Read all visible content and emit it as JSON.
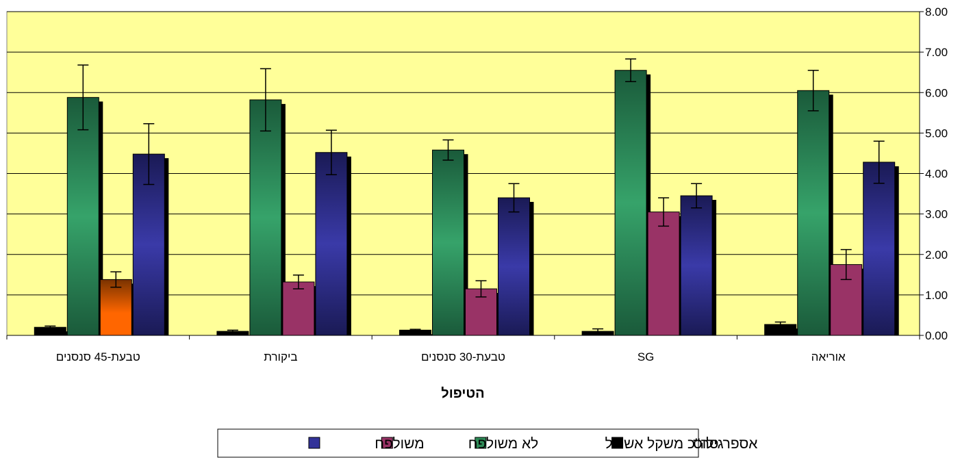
{
  "chart_data": {
    "type": "bar",
    "title": "",
    "xlabel": "הטיפול",
    "ylabel": "",
    "ylim": [
      0,
      8
    ],
    "yticks": [
      "0.00",
      "1.00",
      "2.00",
      "3.00",
      "4.00",
      "5.00",
      "6.00",
      "7.00",
      "8.00"
    ],
    "y_axis_side": "right",
    "category_order": "right-to-left",
    "grid": true,
    "legend_position": "bottom-center",
    "categories": [
      "אוריאה",
      "SG",
      "טבעת-30 סנסנים",
      "ביקורת",
      "טבעת-45 סנסנים"
    ],
    "series": [
      {
        "name": "אספרגילוס",
        "color": "#000000",
        "values": [
          0.27,
          0.1,
          0.13,
          0.1,
          0.2
        ],
        "errors": [
          0.06,
          0.06,
          0.02,
          0.03,
          0.03
        ]
      },
      {
        "name": "סה\"כ משקל אשכול",
        "color": "#2e8b57",
        "values": [
          6.05,
          6.55,
          4.58,
          5.82,
          5.88
        ],
        "errors": [
          0.5,
          0.28,
          0.25,
          0.77,
          0.8
        ]
      },
      {
        "name": "לא משולפח",
        "color": "#993366",
        "values": [
          1.75,
          3.05,
          1.15,
          1.32,
          1.38
        ],
        "errors": [
          0.37,
          0.35,
          0.2,
          0.17,
          0.19
        ],
        "highlight_index": 4,
        "highlight_color": "#ff6600"
      },
      {
        "name": "משולפח",
        "color": "#333399",
        "values": [
          4.28,
          3.45,
          3.4,
          4.52,
          4.48
        ],
        "errors": [
          0.52,
          0.3,
          0.35,
          0.55,
          0.75
        ]
      }
    ],
    "plot_background": "#ffff99"
  }
}
